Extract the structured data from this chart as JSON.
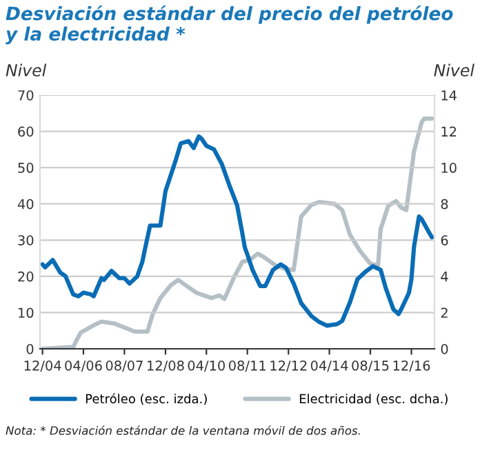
{
  "chart_data": {
    "type": "line",
    "title": "Desviación estándar del precio del petróleo\ny la electricidad *",
    "ylabel": "Nivel",
    "y2label": "Nivel",
    "series": [
      {
        "name": "Petróleo (esc. izda.)",
        "color": "#0a6db5",
        "x": [
          "2004-12",
          "2005-01",
          "2005-04",
          "2005-07",
          "2005-09",
          "2005-12",
          "2006-02",
          "2006-04",
          "2006-07",
          "2006-08",
          "2006-11",
          "2006-12",
          "2007-03",
          "2007-06",
          "2007-08",
          "2007-10",
          "2008-01",
          "2008-03",
          "2008-04",
          "2008-06",
          "2008-10",
          "2008-12",
          "2009-04",
          "2009-06",
          "2009-09",
          "2009-11",
          "2010-01",
          "2010-02",
          "2010-04",
          "2010-07",
          "2010-10",
          "2011-01",
          "2011-04",
          "2011-06",
          "2011-07",
          "2011-08",
          "2011-10",
          "2012-01",
          "2012-03",
          "2012-06",
          "2012-09",
          "2012-11",
          "2013-02",
          "2013-05",
          "2013-09",
          "2013-12",
          "2014-03",
          "2014-07",
          "2014-09",
          "2014-12",
          "2015-03",
          "2015-06",
          "2015-09",
          "2015-12",
          "2016-02",
          "2016-05",
          "2016-07",
          "2016-08",
          "2016-11",
          "2016-12",
          "2017-01",
          "2017-03",
          "2017-04",
          "2017-07",
          "2017-08"
        ],
        "values": [
          23.3,
          22.5,
          24.5,
          21,
          20,
          15,
          14.5,
          15.5,
          15,
          14.5,
          19.5,
          19,
          21.5,
          19.5,
          19.5,
          18,
          20,
          24,
          27.5,
          34,
          34,
          43.5,
          52,
          56.7,
          57.3,
          55.4,
          58.6,
          58,
          56,
          55,
          51,
          45,
          39.6,
          32,
          28,
          26,
          21.8,
          17.3,
          17.3,
          21.8,
          23.3,
          22.4,
          18,
          12.6,
          9,
          7.4,
          6.4,
          6.8,
          7.7,
          12.8,
          19.2,
          21.2,
          22.8,
          21.8,
          16.7,
          10.9,
          9.6,
          10.9,
          15.4,
          19.2,
          28.2,
          36.5,
          35.8,
          32,
          30.8
        ]
      },
      {
        "name": "Electricidad (esc. dcha.)",
        "color": "#b5bfc6",
        "axis": "y2",
        "x": [
          "2004-12",
          "2005-12",
          "2006-01",
          "2006-03",
          "2006-08",
          "2006-11",
          "2007-04",
          "2007-12",
          "2008-05",
          "2008-07",
          "2008-10",
          "2009-02",
          "2009-05",
          "2009-07",
          "2009-12",
          "2010-06",
          "2010-09",
          "2010-11",
          "2011-03",
          "2011-06",
          "2011-09",
          "2011-12",
          "2012-02",
          "2012-07",
          "2012-11",
          "2013-02",
          "2013-05",
          "2013-09",
          "2013-12",
          "2014-06",
          "2014-09",
          "2014-12",
          "2015-04",
          "2015-08",
          "2015-11",
          "2015-12",
          "2016-03",
          "2016-06",
          "2016-08",
          "2016-10",
          "2017-01",
          "2017-04",
          "2017-05",
          "2017-08"
        ],
        "values": [
          0,
          0.1,
          0.4,
          0.9,
          1.3,
          1.5,
          1.4,
          0.95,
          0.95,
          1.9,
          2.8,
          3.5,
          3.8,
          3.6,
          3.1,
          2.8,
          2.95,
          2.75,
          4.0,
          4.8,
          4.9,
          5.25,
          5.1,
          4.6,
          4.4,
          4.35,
          7.3,
          7.95,
          8.1,
          8.0,
          7.65,
          6.3,
          5.4,
          4.7,
          4.6,
          6.6,
          7.9,
          8.15,
          7.8,
          7.65,
          10.9,
          12.5,
          12.7,
          12.7
        ]
      }
    ],
    "xlim": [
      "2004-11",
      "2017-09"
    ],
    "xticks": [
      {
        "value": "2004-12",
        "label": "12/04"
      },
      {
        "value": "2006-04",
        "label": "04/06"
      },
      {
        "value": "2007-08",
        "label": "08/07"
      },
      {
        "value": "2008-12",
        "label": "12/08"
      },
      {
        "value": "2010-04",
        "label": "04/10"
      },
      {
        "value": "2011-08",
        "label": "08/11"
      },
      {
        "value": "2012-12",
        "label": "12/12"
      },
      {
        "value": "2014-04",
        "label": "04/14"
      },
      {
        "value": "2015-08",
        "label": "08/15"
      },
      {
        "value": "2016-12",
        "label": "12/16"
      }
    ],
    "ylim": [
      0,
      70
    ],
    "yticks": [
      0,
      10,
      20,
      30,
      40,
      50,
      60,
      70
    ],
    "y2lim": [
      0,
      14
    ],
    "y2ticks": [
      0,
      2,
      4,
      6,
      8,
      10,
      12,
      14
    ],
    "grid": "y",
    "legend": "bottom",
    "line_style": "solid",
    "marker": "none",
    "annotations": [
      "Nota: * Desviación estándar de la ventana móvil de dos años."
    ]
  }
}
